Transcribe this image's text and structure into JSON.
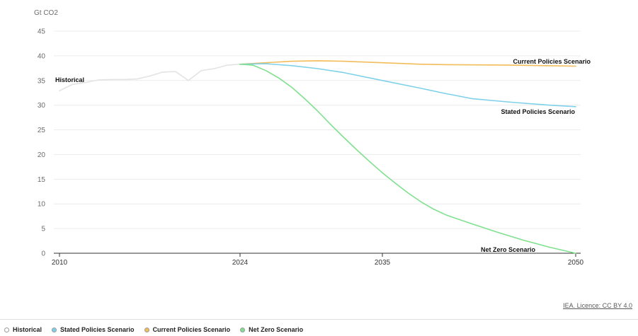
{
  "chart_data": {
    "type": "line",
    "unit_label": "Gt CO2",
    "y_ticks": [
      0,
      5,
      10,
      15,
      20,
      25,
      30,
      35,
      40,
      45
    ],
    "x_ticks": [
      2010,
      2024,
      2035,
      2050
    ],
    "xlim": [
      2010,
      2050
    ],
    "ylim": [
      0,
      45
    ],
    "grid": true,
    "series": [
      {
        "name": "Historical",
        "color": "#e3e3e3",
        "x": [
          2010,
          2011,
          2012,
          2013,
          2014,
          2015,
          2016,
          2017,
          2018,
          2019,
          2020,
          2021,
          2022,
          2023,
          2024
        ],
        "y": [
          32.9,
          34.2,
          34.6,
          35.1,
          35.2,
          35.2,
          35.3,
          35.9,
          36.7,
          36.8,
          35.0,
          37.0,
          37.4,
          38.1,
          38.3
        ]
      },
      {
        "name": "Stated Policies Scenario",
        "color": "#7fd1ea",
        "x": [
          2024,
          2026,
          2028,
          2030,
          2032,
          2035,
          2038,
          2040,
          2042,
          2045,
          2048,
          2050
        ],
        "y": [
          38.3,
          38.4,
          38.0,
          37.4,
          36.6,
          35.0,
          33.4,
          32.3,
          31.3,
          30.6,
          30.0,
          29.7
        ]
      },
      {
        "name": "Current Policies Scenario",
        "color": "#f2bc5a",
        "x": [
          2024,
          2026,
          2028,
          2030,
          2032,
          2035,
          2038,
          2040,
          2045,
          2050
        ],
        "y": [
          38.3,
          38.6,
          38.9,
          39.0,
          38.9,
          38.6,
          38.3,
          38.2,
          38.1,
          37.9
        ]
      },
      {
        "name": "Net Zero Scenario",
        "color": "#7fe08e",
        "x": [
          2024,
          2025,
          2026,
          2027,
          2028,
          2029,
          2030,
          2031,
          2032,
          2033,
          2034,
          2035,
          2036,
          2037,
          2038,
          2039,
          2040,
          2042,
          2044,
          2046,
          2048,
          2050
        ],
        "y": [
          38.3,
          38.1,
          37.0,
          35.5,
          33.6,
          31.3,
          28.8,
          26.1,
          23.5,
          21.0,
          18.6,
          16.3,
          14.2,
          12.2,
          10.4,
          8.9,
          7.7,
          5.9,
          4.2,
          2.6,
          1.2,
          0.0
        ]
      }
    ],
    "annotations": [
      {
        "key": "historical",
        "text": "Historical"
      },
      {
        "key": "current",
        "text": "Current Policies Scenario"
      },
      {
        "key": "stated",
        "text": "Stated Policies Scenario"
      },
      {
        "key": "netzero",
        "text": "Net Zero Scenario"
      }
    ]
  },
  "legend": {
    "items": [
      {
        "label": "Historical",
        "color": "#e3e3e3"
      },
      {
        "label": "Stated Policies Scenario",
        "color": "#7fd1ea"
      },
      {
        "label": "Current Policies Scenario",
        "color": "#f2bc5a"
      },
      {
        "label": "Net Zero Scenario",
        "color": "#7fe08e"
      }
    ]
  },
  "credit": "IEA. Licence: CC BY 4.0"
}
